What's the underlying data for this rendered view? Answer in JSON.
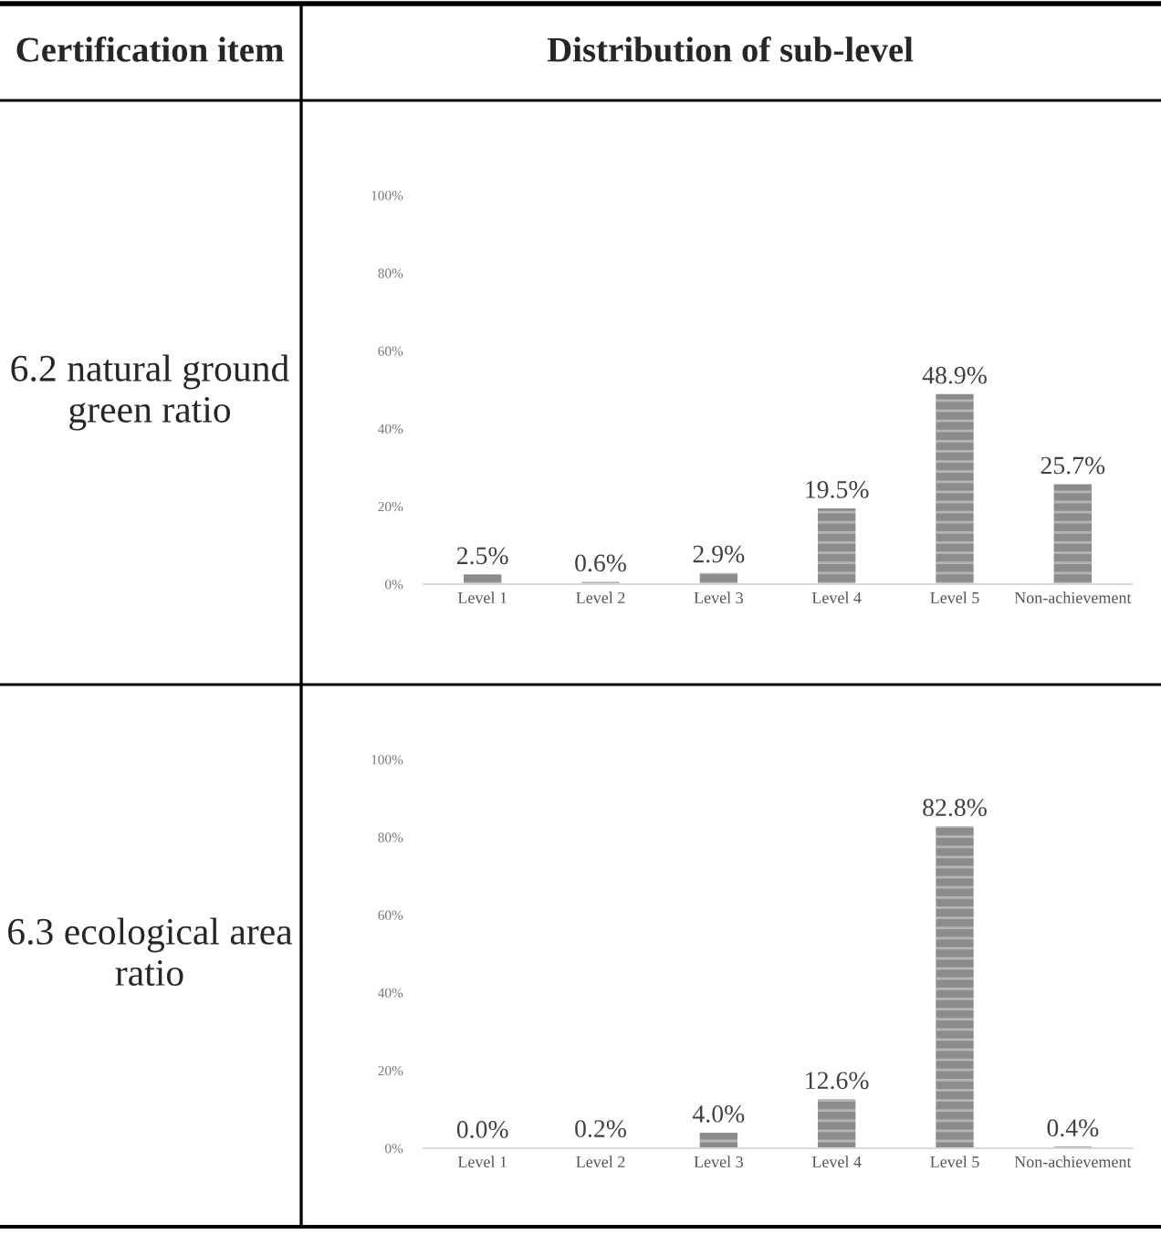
{
  "chart_data": [
    {
      "type": "bar",
      "title": "6.2 natural ground green ratio",
      "annotations": [
        "Certification item",
        "Distribution of sub-level"
      ],
      "categories": [
        "Level 1",
        "Level 2",
        "Level 3",
        "Level 4",
        "Level 5",
        "Non-achievement"
      ],
      "values": [
        2.5,
        0.6,
        2.9,
        19.5,
        48.9,
        25.7
      ],
      "value_labels": [
        "2.5%",
        "0.6%",
        "2.9%",
        "19.5%",
        "48.9%",
        "25.7%"
      ],
      "color": "#8c8c8c",
      "ylim": [
        0,
        100
      ],
      "yticks": [
        {
          "value": 0,
          "label": "0%"
        },
        {
          "value": 20,
          "label": "20%"
        },
        {
          "value": 40,
          "label": "40%"
        },
        {
          "value": 60,
          "label": "60%"
        },
        {
          "value": 80,
          "label": "80%"
        },
        {
          "value": 100,
          "label": "100%"
        }
      ]
    },
    {
      "type": "bar",
      "title": "6.3 ecological area ratio",
      "categories": [
        "Level 1",
        "Level 2",
        "Level 3",
        "Level 4",
        "Level 5",
        "Non-achievement"
      ],
      "values": [
        0.0,
        0.2,
        4.0,
        12.6,
        82.8,
        0.4
      ],
      "value_labels": [
        "0.0%",
        "0.2%",
        "4.0%",
        "12.6%",
        "82.8%",
        "0.4%"
      ],
      "color": "#8c8c8c",
      "ylim": [
        0,
        100
      ],
      "yticks": [
        {
          "value": 0,
          "label": "0%"
        },
        {
          "value": 20,
          "label": "20%"
        },
        {
          "value": 40,
          "label": "40%"
        },
        {
          "value": 60,
          "label": "60%"
        },
        {
          "value": 80,
          "label": "80%"
        },
        {
          "value": 100,
          "label": "100%"
        }
      ]
    }
  ]
}
